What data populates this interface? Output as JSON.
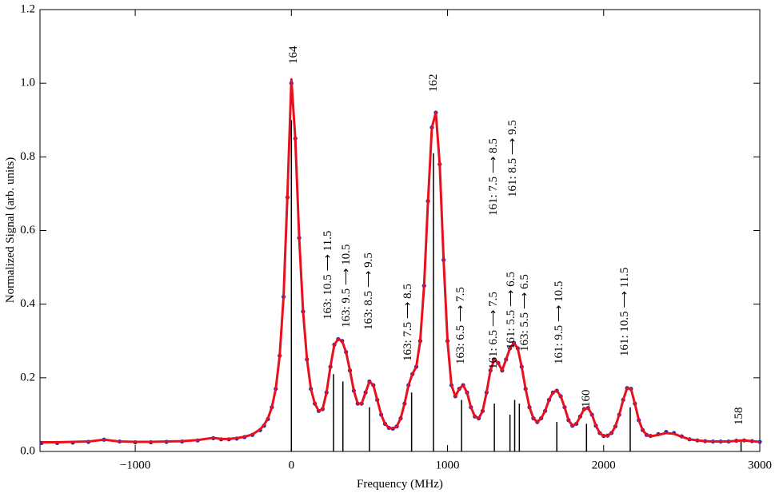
{
  "chart_data": {
    "type": "line",
    "xlabel": "Frequency (MHz)",
    "ylabel": "Normalized Signal (arb. units)",
    "x": [
      -1600,
      -1500,
      -1400,
      -1300,
      -1200,
      -1100,
      -1000,
      -900,
      -800,
      -700,
      -600,
      -500,
      -450,
      -400,
      -350,
      -300,
      -250,
      -200,
      -175,
      -150,
      -125,
      -100,
      -75,
      -50,
      -25,
      0,
      25,
      50,
      75,
      100,
      125,
      150,
      175,
      200,
      225,
      250,
      275,
      300,
      325,
      350,
      375,
      400,
      425,
      450,
      475,
      500,
      525,
      550,
      575,
      600,
      625,
      650,
      675,
      700,
      725,
      750,
      775,
      800,
      825,
      850,
      875,
      900,
      925,
      950,
      975,
      1000,
      1025,
      1050,
      1075,
      1100,
      1125,
      1150,
      1175,
      1200,
      1225,
      1250,
      1275,
      1300,
      1325,
      1350,
      1375,
      1400,
      1425,
      1450,
      1475,
      1500,
      1525,
      1550,
      1575,
      1600,
      1625,
      1650,
      1675,
      1700,
      1725,
      1750,
      1775,
      1800,
      1825,
      1850,
      1875,
      1900,
      1925,
      1950,
      1975,
      2000,
      2025,
      2050,
      2075,
      2100,
      2125,
      2150,
      2175,
      2200,
      2225,
      2250,
      2275,
      2300,
      2350,
      2400,
      2450,
      2500,
      2550,
      2600,
      2650,
      2700,
      2750,
      2800,
      2850,
      2900,
      2950,
      3000
    ],
    "series": [
      {
        "style": "points",
        "color": "#2a2ab4",
        "values": [
          0.023,
          0.023,
          0.024,
          0.026,
          0.032,
          0.027,
          0.025,
          0.025,
          0.026,
          0.027,
          0.03,
          0.036,
          0.033,
          0.033,
          0.035,
          0.039,
          0.045,
          0.058,
          0.07,
          0.088,
          0.12,
          0.17,
          0.26,
          0.42,
          0.69,
          1.0,
          0.85,
          0.58,
          0.38,
          0.25,
          0.17,
          0.13,
          0.11,
          0.115,
          0.16,
          0.23,
          0.29,
          0.305,
          0.3,
          0.27,
          0.22,
          0.165,
          0.13,
          0.13,
          0.16,
          0.19,
          0.18,
          0.14,
          0.1,
          0.075,
          0.064,
          0.062,
          0.068,
          0.09,
          0.13,
          0.18,
          0.21,
          0.23,
          0.3,
          0.45,
          0.68,
          0.88,
          0.92,
          0.78,
          0.52,
          0.3,
          0.18,
          0.15,
          0.17,
          0.18,
          0.16,
          0.12,
          0.095,
          0.09,
          0.11,
          0.16,
          0.22,
          0.25,
          0.24,
          0.22,
          0.25,
          0.28,
          0.295,
          0.28,
          0.23,
          0.17,
          0.12,
          0.09,
          0.08,
          0.09,
          0.11,
          0.14,
          0.16,
          0.165,
          0.15,
          0.12,
          0.085,
          0.07,
          0.075,
          0.095,
          0.115,
          0.118,
          0.1,
          0.07,
          0.05,
          0.042,
          0.043,
          0.05,
          0.068,
          0.1,
          0.14,
          0.172,
          0.17,
          0.13,
          0.085,
          0.058,
          0.045,
          0.042,
          0.047,
          0.053,
          0.05,
          0.041,
          0.033,
          0.03,
          0.028,
          0.027,
          0.027,
          0.027,
          0.029,
          0.03,
          0.028,
          0.026
        ]
      },
      {
        "style": "line",
        "color": "#e8101c",
        "values": [
          0.025,
          0.025,
          0.026,
          0.027,
          0.032,
          0.027,
          0.026,
          0.026,
          0.027,
          0.028,
          0.031,
          0.037,
          0.034,
          0.034,
          0.036,
          0.04,
          0.046,
          0.06,
          0.072,
          0.09,
          0.12,
          0.17,
          0.26,
          0.42,
          0.7,
          1.01,
          0.85,
          0.58,
          0.38,
          0.25,
          0.17,
          0.13,
          0.11,
          0.115,
          0.16,
          0.23,
          0.29,
          0.305,
          0.3,
          0.27,
          0.22,
          0.165,
          0.13,
          0.13,
          0.16,
          0.19,
          0.18,
          0.14,
          0.1,
          0.075,
          0.064,
          0.062,
          0.068,
          0.09,
          0.13,
          0.18,
          0.21,
          0.23,
          0.3,
          0.45,
          0.68,
          0.88,
          0.92,
          0.78,
          0.52,
          0.3,
          0.18,
          0.15,
          0.17,
          0.18,
          0.16,
          0.12,
          0.095,
          0.09,
          0.11,
          0.16,
          0.22,
          0.25,
          0.24,
          0.22,
          0.25,
          0.28,
          0.295,
          0.28,
          0.23,
          0.17,
          0.12,
          0.09,
          0.08,
          0.09,
          0.11,
          0.14,
          0.16,
          0.165,
          0.15,
          0.12,
          0.085,
          0.07,
          0.075,
          0.095,
          0.115,
          0.118,
          0.1,
          0.07,
          0.05,
          0.042,
          0.043,
          0.05,
          0.068,
          0.1,
          0.14,
          0.172,
          0.17,
          0.13,
          0.085,
          0.058,
          0.045,
          0.041,
          0.045,
          0.05,
          0.048,
          0.04,
          0.033,
          0.03,
          0.028,
          0.027,
          0.027,
          0.027,
          0.029,
          0.03,
          0.028,
          0.026
        ]
      }
    ],
    "sticks": {
      "color": "#000000",
      "x": [
        0,
        270,
        330,
        500,
        770,
        910,
        1090,
        1300,
        1400,
        1430,
        1460,
        1700,
        1890,
        2170,
        2880
      ],
      "values": [
        0.9,
        0.21,
        0.19,
        0.12,
        0.16,
        0.81,
        0.14,
        0.13,
        0.1,
        0.14,
        0.13,
        0.08,
        0.075,
        0.12,
        0.03
      ]
    },
    "annotations": [
      "164",
      "163: 10.5 ⟶ 11.5",
      "163: 9.5 ⟶ 10.5",
      "163: 8.5 ⟶ 9.5",
      "163: 7.5 ⟶ 8.5",
      "162",
      "163: 6.5 ⟶ 7.5",
      "161: 6.5 ⟶ 7.5",
      "161: 5.5 ⟶ 6.5",
      "163: 5.5 ⟶ 6.5",
      "161: 7.5 ⟶ 8.5",
      "161: 8.5 ⟶ 9.5",
      "161: 9.5 ⟶ 10.5",
      "160",
      "161: 10.5 ⟶ 11.5",
      "158"
    ],
    "xlim": [
      -1610,
      3000
    ],
    "ylim": [
      0,
      1.2
    ],
    "xticks": [
      {
        "value": -1000,
        "label": "−1000"
      },
      0,
      1000,
      2000,
      3000
    ],
    "yticks": [
      {
        "value": 0,
        "label": "0.0"
      },
      {
        "value": 0.2,
        "label": "0.2"
      },
      {
        "value": 0.4,
        "label": "0.4"
      },
      {
        "value": 0.6,
        "label": "0.6"
      },
      {
        "value": 0.8,
        "label": "0.8"
      },
      {
        "value": 1,
        "label": "1.0"
      },
      {
        "value": 1.2,
        "label": "1.2"
      }
    ]
  }
}
